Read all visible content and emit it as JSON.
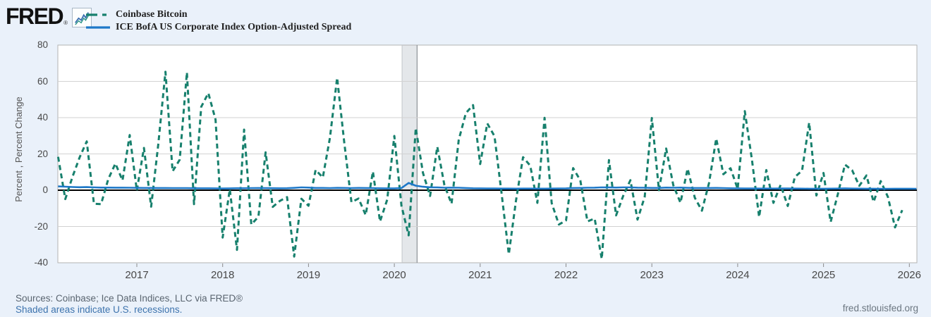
{
  "header": {
    "logo_text": "FRED",
    "registered_mark": "®",
    "legend": [
      {
        "label": "Coinbase Bitcoin",
        "color": "#17806d",
        "style": "dashed"
      },
      {
        "label": "ICE BofA US Corporate Index Option-Adjusted Spread",
        "color": "#1e78c8",
        "style": "solid"
      }
    ]
  },
  "footer": {
    "sources": "Sources: Coinbase; Ice Data Indices, LLC via FRED®",
    "recession_note": "Shaded areas indicate U.S. recessions.",
    "site": "fred.stlouisfed.org"
  },
  "colors": {
    "background": "#eaf1fa",
    "plot_background": "#ffffff",
    "plot_border": "#b3b3b3",
    "gridline": "#d2d2d2",
    "zero_line": "#000000",
    "recession_band": "#e4e7ea",
    "recession_band_edge_left": "#c2c6ca",
    "recession_band_edge_right": "#8c9196",
    "series_bitcoin": "#17806d",
    "series_oas": "#1e78c8",
    "link": "#3d73ad"
  },
  "chart_data": {
    "type": "line",
    "title": "",
    "xlabel": "",
    "ylabel": "Percent , Percent Change",
    "ylim": [
      -40,
      80
    ],
    "yticks": [
      80,
      60,
      40,
      20,
      0,
      -20,
      -40
    ],
    "xticks": [
      2017,
      2018,
      2019,
      2020,
      2021,
      2022,
      2023,
      2024,
      2025,
      2026
    ],
    "xlim_decimal_years": [
      2016.08,
      2026.09
    ],
    "x_start": "2016-02",
    "x_step_months": 1,
    "grid": "horizontal",
    "zero_line": true,
    "legend_position": "top-left",
    "recession_bands": [
      {
        "start": 2020.09,
        "end": 2020.265
      }
    ],
    "series": [
      {
        "name": "Coinbase Bitcoin",
        "units": "Percent Change (monthly)",
        "color": "#17806d",
        "dashed": true,
        "values": [
          18.4,
          -4.9,
          7.3,
          18.1,
          26.9,
          -7.5,
          -7.7,
          6.0,
          14.7,
          5.4,
          30.4,
          -0.2,
          23.3,
          -9.1,
          25.3,
          65.3,
          10.4,
          16.8,
          65.0,
          -7.7,
          46.0,
          53.5,
          38.9,
          -26.1,
          0.5,
          -32.9,
          33.4,
          -18.9,
          -14.6,
          20.9,
          -9.2,
          -5.9,
          -3.8,
          -36.6,
          -4.7,
          -8.6,
          11.2,
          7.0,
          28.9,
          62.0,
          26.3,
          -6.6,
          -4.6,
          -13.7,
          10.3,
          -17.3,
          -5.2,
          29.9,
          -8.6,
          -24.9,
          34.3,
          9.5,
          -3.2,
          24.0,
          2.8,
          -7.5,
          27.7,
          42.5,
          46.9,
          14.4,
          36.8,
          29.8,
          -1.9,
          -35.3,
          -6.0,
          18.2,
          13.5,
          -7.0,
          39.9,
          -7.1,
          -18.9,
          -16.7,
          12.2,
          5.4,
          -17.2,
          -15.6,
          -37.9,
          16.6,
          -13.9,
          -3.1,
          5.5,
          -16.2,
          -3.6,
          39.8,
          0.0,
          23.0,
          2.8,
          -6.9,
          11.9,
          -4.1,
          -11.3,
          4.0,
          28.5,
          8.8,
          12.1,
          0.7,
          43.6,
          16.6,
          -14.8,
          11.1,
          -7.0,
          2.9,
          -8.7,
          7.3,
          10.8,
          37.3,
          -2.9,
          9.5,
          -17.5,
          -2.2,
          14.1,
          11.0,
          2.4,
          8.1,
          -6.5,
          5.0,
          -3.7,
          -20.5,
          -11.0
        ]
      },
      {
        "name": "ICE BofA US Corporate Index Option-Adjusted Spread",
        "units": "Percent",
        "color": "#1e78c8",
        "dashed": false,
        "values": [
          2.1,
          1.95,
          1.75,
          1.65,
          1.7,
          1.55,
          1.45,
          1.45,
          1.4,
          1.4,
          1.35,
          1.3,
          1.25,
          1.25,
          1.2,
          1.2,
          1.15,
          1.15,
          1.15,
          1.1,
          1.05,
          1.05,
          1.0,
          0.95,
          1.0,
          1.1,
          1.1,
          1.15,
          1.2,
          1.15,
          1.1,
          1.05,
          1.1,
          1.3,
          1.55,
          1.45,
          1.25,
          1.25,
          1.15,
          1.3,
          1.25,
          1.15,
          1.25,
          1.2,
          1.15,
          1.05,
          1.0,
          1.0,
          1.2,
          4.0,
          2.5,
          1.9,
          1.6,
          1.5,
          1.35,
          1.4,
          1.35,
          1.2,
          1.05,
          1.0,
          0.95,
          0.95,
          0.9,
          0.9,
          0.85,
          0.9,
          0.9,
          0.85,
          0.85,
          0.9,
          0.95,
          1.0,
          1.2,
          1.25,
          1.35,
          1.4,
          1.55,
          1.5,
          1.45,
          1.55,
          1.55,
          1.4,
          1.35,
          1.25,
          1.25,
          1.45,
          1.35,
          1.45,
          1.3,
          1.2,
          1.2,
          1.2,
          1.25,
          1.15,
          1.05,
          1.0,
          0.95,
          0.95,
          0.9,
          0.9,
          0.9,
          0.95,
          0.95,
          0.9,
          0.85,
          0.8,
          0.8,
          0.8,
          0.85,
          0.9,
          1.0,
          0.9,
          0.85,
          0.8,
          0.8,
          0.75,
          0.75,
          0.8,
          0.8,
          0.8,
          0.78
        ]
      }
    ]
  }
}
